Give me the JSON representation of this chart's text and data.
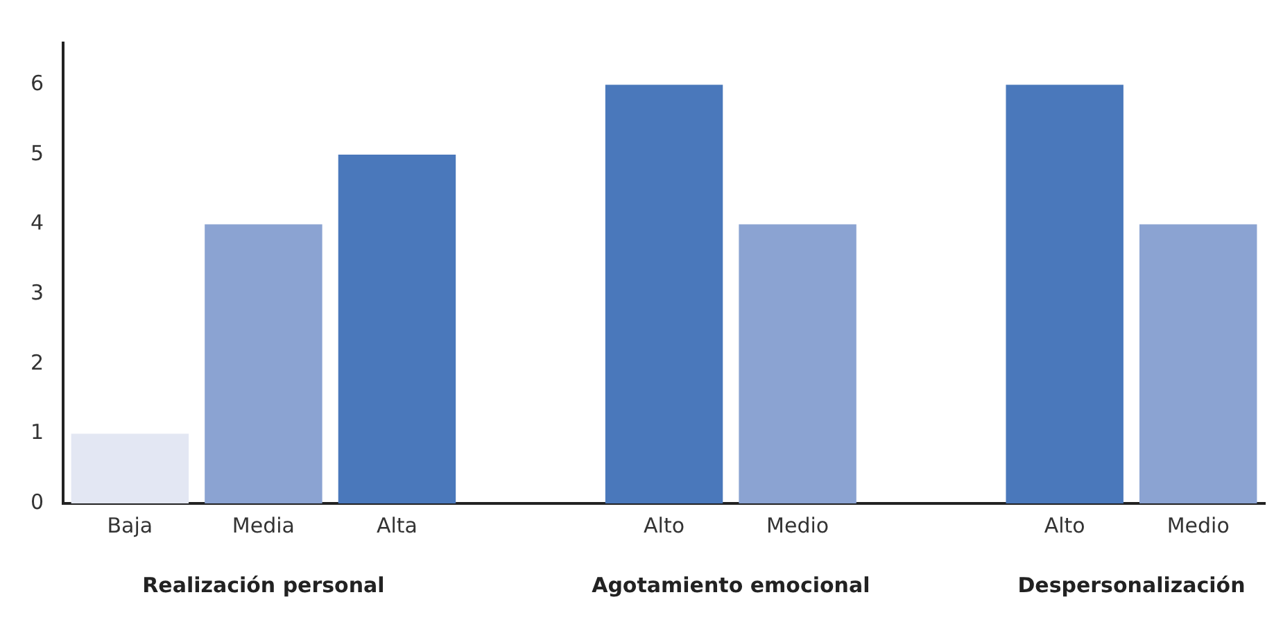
{
  "chart_data": {
    "type": "bar",
    "categories": [
      "Baja",
      "Media",
      "Alta",
      null,
      "Alto",
      "Medio",
      null,
      "Alto",
      "Medio"
    ],
    "values": [
      1,
      4,
      5,
      null,
      6,
      4,
      null,
      6,
      4
    ],
    "colors": [
      "#e3e7f3",
      "#8ba3d2",
      "#4a78bb",
      "#ffffff",
      "#4a78bb",
      "#8ba3d2",
      "#ffffff",
      "#4a78bb",
      "#8ba3d2"
    ],
    "ylim": [
      0,
      6.6
    ],
    "yticks": [
      0,
      1,
      2,
      3,
      4,
      5,
      6
    ],
    "grid": false,
    "legend": false,
    "annotations": [
      "Realización personal",
      "Agotamiento emocional",
      "Despersonalización"
    ]
  }
}
